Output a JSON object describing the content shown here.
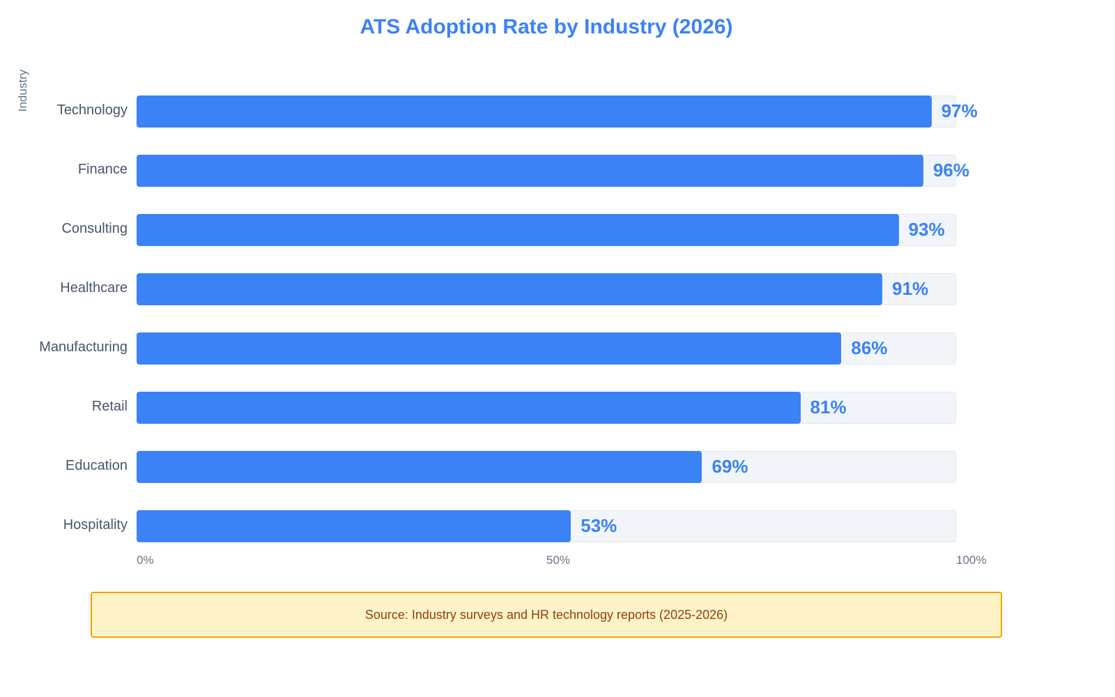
{
  "chart_data": {
    "type": "bar",
    "orientation": "horizontal",
    "title": "ATS Adoption Rate by Industry (2026)",
    "ylabel": "Industry",
    "xlabel": "",
    "xlim": [
      0,
      100
    ],
    "categories": [
      "Technology",
      "Finance",
      "Consulting",
      "Healthcare",
      "Manufacturing",
      "Retail",
      "Education",
      "Hospitality"
    ],
    "values": [
      97,
      96,
      93,
      91,
      86,
      81,
      69,
      53
    ],
    "value_labels": [
      "97%",
      "96%",
      "93%",
      "91%",
      "86%",
      "81%",
      "69%",
      "53%"
    ],
    "ticks": [
      {
        "value": 0,
        "label": "0%"
      },
      {
        "value": 50,
        "label": "50%"
      },
      {
        "value": 100,
        "label": "100%"
      }
    ],
    "colors": {
      "bar": "#3b82f6",
      "track": "#f1f5f9",
      "title": "#3b82f6"
    },
    "grid": false,
    "legend": "none"
  },
  "source": {
    "text": "Source: Industry surveys and HR technology reports (2025-2026)",
    "background": "#fef3c7",
    "border": "#f59e0b",
    "color": "#92400e"
  }
}
